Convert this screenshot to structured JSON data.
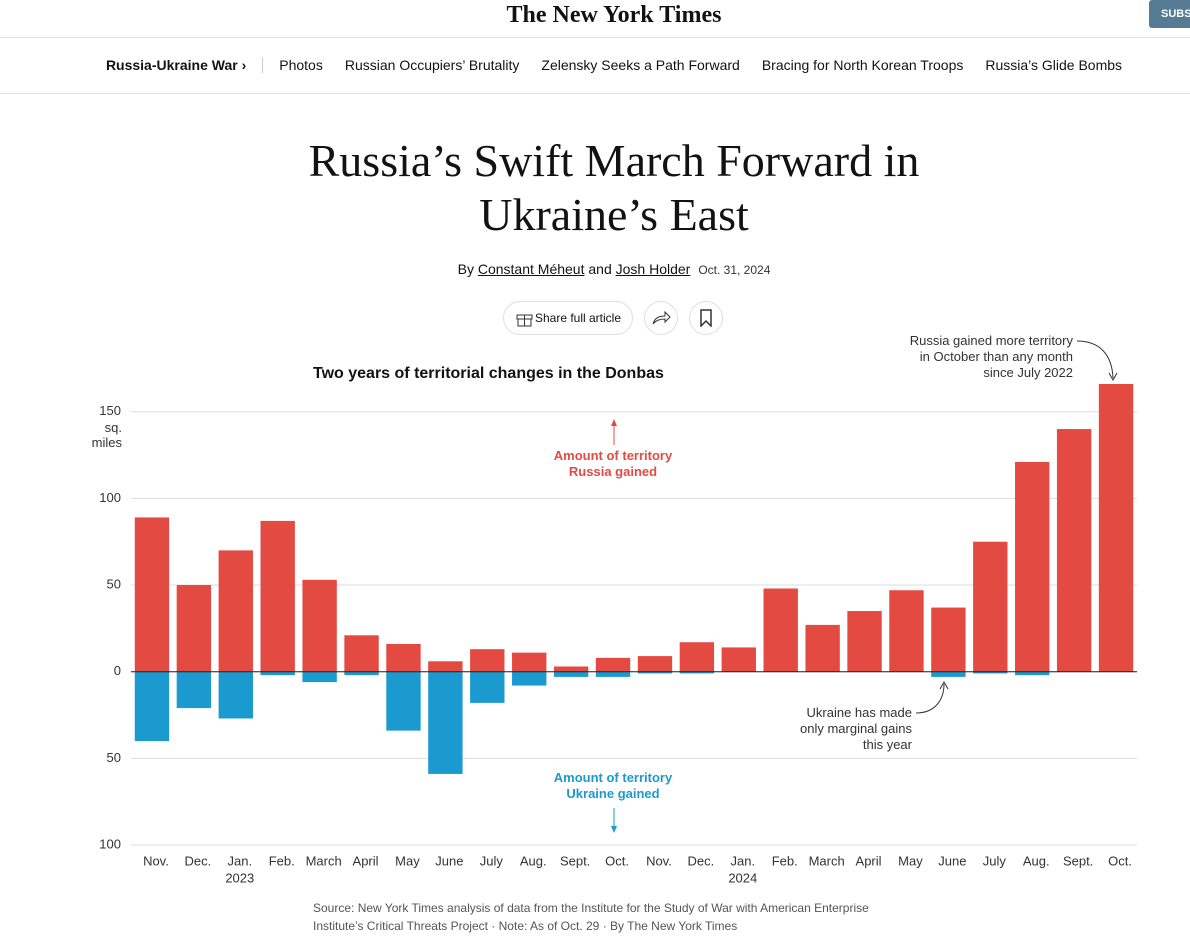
{
  "header": {
    "logo": "The New York Times",
    "subscribe": "SUBS"
  },
  "nav": {
    "section": "Russia-Ukraine War ›",
    "links": [
      "Photos",
      "Russian Occupiers’ Brutality",
      "Zelensky Seeks a Path Forward",
      "Bracing for North Korean Troops",
      "Russia’s Glide Bombs"
    ]
  },
  "article": {
    "headline": "Russia’s Swift March Forward in Ukraine’s East",
    "by": "By",
    "authors": [
      "Constant Méheut",
      "Josh Holder"
    ],
    "and": "and",
    "date": "Oct. 31, 2024",
    "share": "Share full article"
  },
  "chart_data": {
    "type": "bar",
    "stacked_around_zero": true,
    "title": "Two years of territorial changes in the Donbas",
    "y_unit": "sq. miles",
    "categories": [
      "Nov.",
      "Dec.",
      "Jan.",
      "Feb.",
      "March",
      "April",
      "May",
      "June",
      "July",
      "Aug.",
      "Sept.",
      "Oct.",
      "Nov.",
      "Dec.",
      "Jan.",
      "Feb.",
      "March",
      "April",
      "May",
      "June",
      "July",
      "Aug.",
      "Sept.",
      "Oct."
    ],
    "category_years": [
      null,
      null,
      "2023",
      null,
      null,
      null,
      null,
      null,
      null,
      null,
      null,
      null,
      null,
      null,
      "2024",
      null,
      null,
      null,
      null,
      null,
      null,
      null,
      null,
      null
    ],
    "series": [
      {
        "name": "Amount of territory Russia gained",
        "color": "#e34a42",
        "values": [
          89,
          50,
          70,
          87,
          53,
          21,
          16,
          6,
          13,
          11,
          3,
          8,
          9,
          17,
          14,
          48,
          27,
          35,
          47,
          37,
          75,
          121,
          140,
          166
        ]
      },
      {
        "name": "Amount of territory Ukraine gained",
        "color": "#1b9ad0",
        "values": [
          -40,
          -21,
          -27,
          -2,
          -6,
          -2,
          -34,
          -59,
          -18,
          -8,
          -3,
          -3,
          -1,
          -1,
          0,
          0,
          0,
          0,
          0,
          -3,
          -1,
          -2,
          0,
          0
        ]
      }
    ],
    "ylim": [
      -100,
      166
    ],
    "yticks": [
      150,
      100,
      50,
      0,
      {
        "value": -50,
        "label": "50"
      },
      {
        "value": -100,
        "label": "100"
      }
    ],
    "grid": true,
    "annotations": [
      "Russia gained more territory in October than any month since July 2022",
      "Ukraine has made only marginal gains this year"
    ],
    "source": "Source: New York Times analysis of data from the Institute for the Study of War with American Enterprise Institute’s Critical Threats Project",
    "note": "Note: As of Oct. 29",
    "credit": "By The New York Times"
  }
}
